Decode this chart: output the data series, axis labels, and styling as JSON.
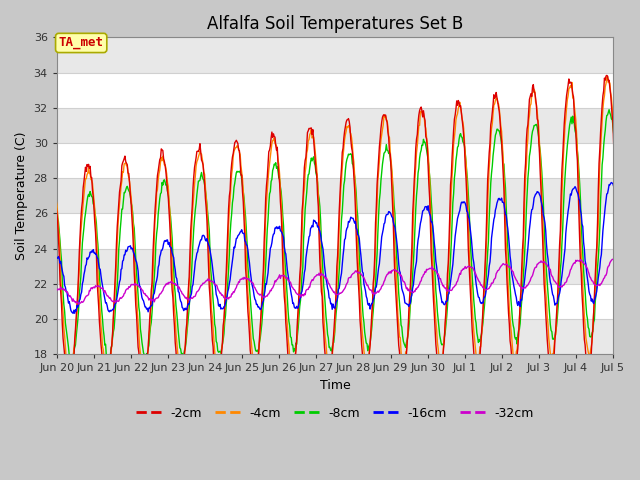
{
  "title": "Alfalfa Soil Temperatures Set B",
  "xlabel": "Time",
  "ylabel": "Soil Temperature (C)",
  "ylim": [
    18,
    36
  ],
  "yticks": [
    18,
    20,
    22,
    24,
    26,
    28,
    30,
    32,
    34,
    36
  ],
  "fig_bg": "#c8c8c8",
  "plot_bg": "#ffffff",
  "grid_color": "#e0e0e0",
  "annotation_text": "TA_met",
  "annotation_color": "#cc0000",
  "annotation_bg": "#ffffaa",
  "annotation_edge": "#aaaa00",
  "series_colors": {
    "-2cm": "#dd0000",
    "-4cm": "#ff8800",
    "-8cm": "#00cc00",
    "-16cm": "#0000ff",
    "-32cm": "#cc00cc"
  },
  "legend_labels": [
    "-2cm",
    "-4cm",
    "-8cm",
    "-16cm",
    "-32cm"
  ],
  "x_tick_labels": [
    "Jun 20",
    "Jun 21",
    "Jun 22",
    "Jun 23",
    "Jun 24",
    "Jun 25",
    "Jun 26",
    "Jun 27",
    "Jun 28",
    "Jun 29",
    "Jun 30",
    "Jul 1",
    "Jul 2",
    "Jul 3",
    "Jul 4",
    "Jul 5"
  ],
  "title_fontsize": 12,
  "axis_label_fontsize": 9,
  "tick_fontsize": 8,
  "legend_fontsize": 9,
  "annotation_fontsize": 9
}
